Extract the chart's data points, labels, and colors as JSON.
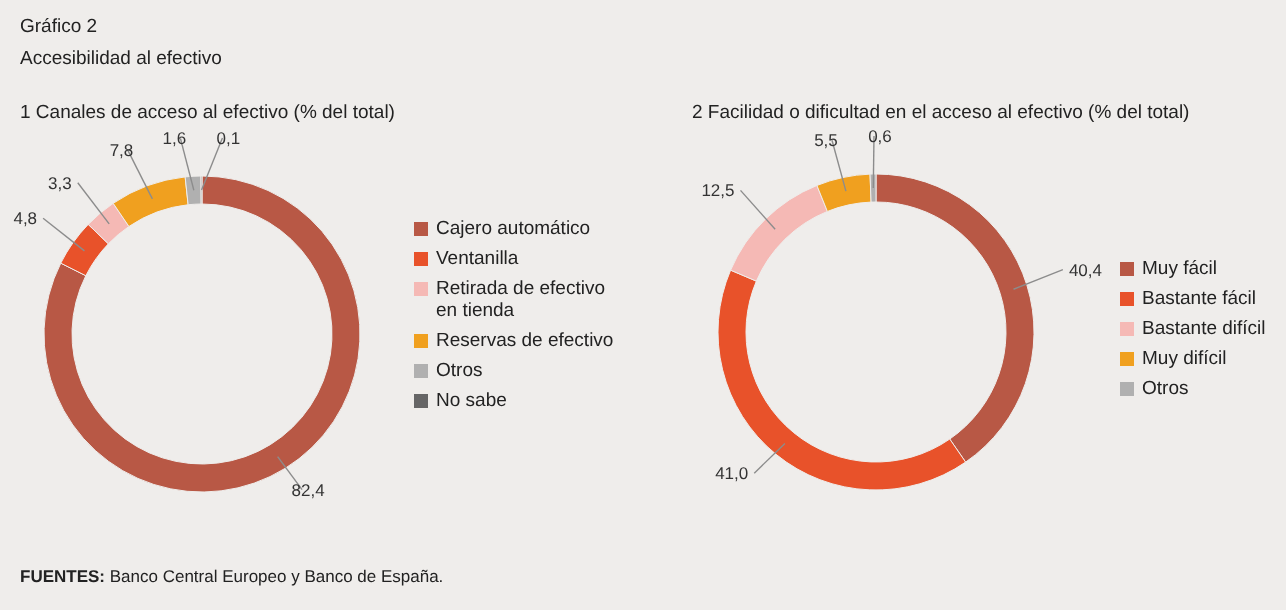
{
  "chart_data": [
    {
      "type": "donut",
      "title": "1  Canales de acceso al efectivo (% del total)",
      "categories": [
        "Cajero automático",
        "Ventanilla",
        "Retirada de efectivo en tienda",
        "Reservas de efectivo",
        "Otros",
        "No sabe"
      ],
      "values": [
        82.4,
        4.8,
        3.3,
        7.8,
        1.6,
        0.1
      ],
      "colors": [
        "#b85845",
        "#e8522a",
        "#f5b9b5",
        "#f0a01f",
        "#b0b0b0",
        "#666666"
      ],
      "value_labels": [
        "82,4",
        "4,8",
        "3,3",
        "7,8",
        "1,6",
        "0,1"
      ],
      "legend": "right",
      "annotations": [
        "Gráfico 2",
        "Accesibilidad al efectivo",
        "FUENTES: Banco Central Europeo y Banco de España."
      ]
    },
    {
      "type": "donut",
      "title": "2  Facilidad o dificultad en el acceso al efectivo (% del total)",
      "categories": [
        "Muy fácil",
        "Bastante fácil",
        "Bastante difícil",
        "Muy difícil",
        "Otros"
      ],
      "values": [
        40.4,
        41.0,
        12.5,
        5.5,
        0.6
      ],
      "colors": [
        "#b85845",
        "#e8522a",
        "#f5b9b5",
        "#f0a01f",
        "#b0b0b0"
      ],
      "value_labels": [
        "40,4",
        "41,0",
        "12,5",
        "5,5",
        "0,6"
      ],
      "legend": "right"
    }
  ]
}
